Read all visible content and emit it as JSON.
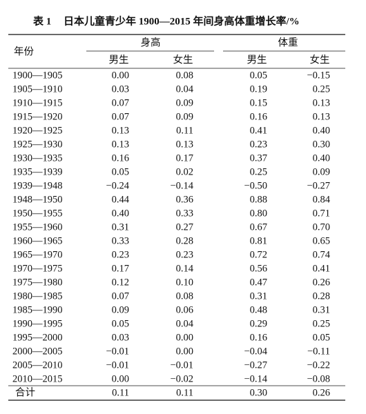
{
  "caption": {
    "label": "表 1",
    "title": "日本儿童青少年 1900—2015 年间身高体重增长率/%"
  },
  "table": {
    "header": {
      "year": "年份",
      "groups": [
        "身高",
        "体重"
      ],
      "sub": [
        "男生",
        "女生",
        "男生",
        "女生"
      ]
    },
    "rows": [
      [
        "1900—1905",
        "0.00",
        "0.08",
        "0.05",
        "−0.15"
      ],
      [
        "1905—1910",
        "0.03",
        "0.04",
        "0.19",
        "0.25"
      ],
      [
        "1910—1915",
        "0.07",
        "0.09",
        "0.15",
        "0.13"
      ],
      [
        "1915—1920",
        "0.07",
        "0.09",
        "0.16",
        "0.13"
      ],
      [
        "1920—1925",
        "0.13",
        "0.11",
        "0.41",
        "0.40"
      ],
      [
        "1925—1930",
        "0.13",
        "0.13",
        "0.23",
        "0.30"
      ],
      [
        "1930—1935",
        "0.16",
        "0.17",
        "0.37",
        "0.40"
      ],
      [
        "1935—1939",
        "0.05",
        "0.02",
        "0.25",
        "0.09"
      ],
      [
        "1939—1948",
        "−0.24",
        "−0.14",
        "−0.50",
        "−0.27"
      ],
      [
        "1948—1950",
        "0.44",
        "0.36",
        "0.88",
        "0.84"
      ],
      [
        "1950—1955",
        "0.40",
        "0.33",
        "0.80",
        "0.71"
      ],
      [
        "1955—1960",
        "0.31",
        "0.27",
        "0.67",
        "0.70"
      ],
      [
        "1960—1965",
        "0.33",
        "0.28",
        "0.81",
        "0.65"
      ],
      [
        "1965—1970",
        "0.23",
        "0.23",
        "0.72",
        "0.74"
      ],
      [
        "1970—1975",
        "0.17",
        "0.14",
        "0.56",
        "0.41"
      ],
      [
        "1975—1980",
        "0.12",
        "0.10",
        "0.47",
        "0.26"
      ],
      [
        "1980—1985",
        "0.07",
        "0.08",
        "0.31",
        "0.28"
      ],
      [
        "1985—1990",
        "0.09",
        "0.06",
        "0.48",
        "0.31"
      ],
      [
        "1990—1995",
        "0.05",
        "0.04",
        "0.29",
        "0.25"
      ],
      [
        "1995—2000",
        "0.03",
        "0.00",
        "0.16",
        "0.05"
      ],
      [
        "2000—2005",
        "−0.01",
        "0.00",
        "−0.04",
        "−0.11"
      ],
      [
        "2005—2010",
        "−0.01",
        "−0.01",
        "−0.27",
        "−0.22"
      ],
      [
        "2010—2015",
        "0.00",
        "−0.02",
        "−0.14",
        "−0.08"
      ]
    ],
    "total": [
      "合计",
      "0.11",
      "0.11",
      "0.30",
      "0.26"
    ]
  }
}
